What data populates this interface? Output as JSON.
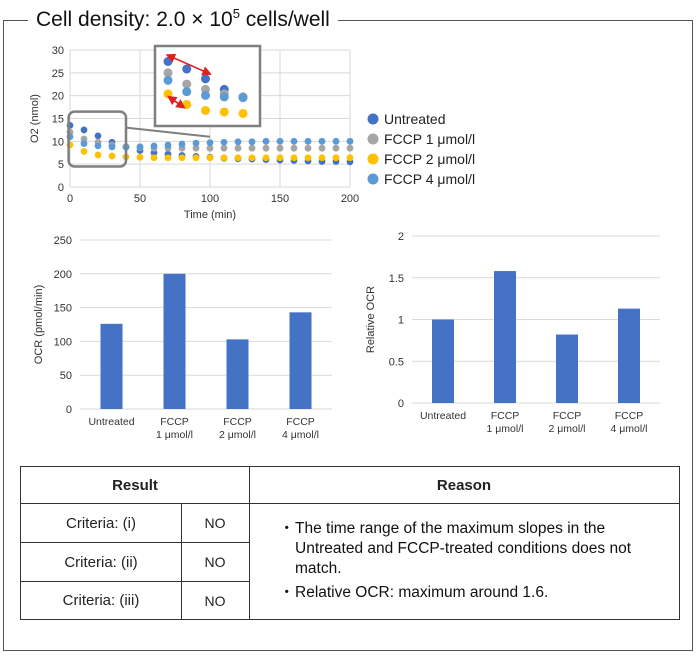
{
  "heading": {
    "prefix": "Cell density: 2.0",
    "times": "×",
    "base": " 10",
    "exp": "5",
    "suffix": " cells/well"
  },
  "colors": {
    "untreated": "#4472C4",
    "fccp1": "#A5A5A5",
    "fccp2": "#FFC000",
    "fccp4": "#5B9BD5",
    "bar": "#4472C4",
    "arrow": "#E02020",
    "zoombox": "#7F7F7F"
  },
  "chart_data": [
    {
      "type": "scatter",
      "xlabel": "Time (min)",
      "ylabel": "O2 (nmol)",
      "xlim": [
        0,
        200
      ],
      "ylim": [
        0,
        30
      ],
      "xticks": [
        0,
        50,
        100,
        150,
        200
      ],
      "yticks": [
        0,
        5,
        10,
        15,
        20,
        25,
        30
      ],
      "grid": true,
      "legend": "right",
      "series": [
        {
          "name": "Untreated",
          "color_key": "untreated",
          "x": [
            0,
            10,
            20,
            30,
            40,
            50,
            60,
            70,
            80,
            90,
            100,
            110,
            120,
            130,
            140,
            150,
            160,
            170,
            180,
            190,
            200
          ],
          "y": [
            13.5,
            12.5,
            11.2,
            9.8,
            8.8,
            8.0,
            7.5,
            7.2,
            6.9,
            6.7,
            6.5,
            6.3,
            6.2,
            6.1,
            6.0,
            5.9,
            5.8,
            5.7,
            5.6,
            5.6,
            5.5
          ]
        },
        {
          "name": "FCCP 1 μmol/l",
          "color_key": "fccp1",
          "x": [
            0,
            10,
            20,
            30,
            40,
            50,
            60,
            70,
            80,
            90,
            100,
            110,
            120,
            130,
            140,
            150,
            160,
            170,
            180,
            190,
            200
          ],
          "y": [
            12.0,
            10.5,
            9.8,
            9.2,
            8.8,
            8.6,
            8.5,
            8.5,
            8.5,
            8.5,
            8.5,
            8.5,
            8.5,
            8.5,
            8.5,
            8.5,
            8.5,
            8.5,
            8.5,
            8.5,
            8.5
          ]
        },
        {
          "name": "FCCP 2 μmol/l",
          "color_key": "fccp2",
          "x": [
            0,
            10,
            20,
            30,
            40,
            50,
            60,
            70,
            80,
            90,
            100,
            110,
            120,
            130,
            140,
            150,
            160,
            170,
            180,
            190,
            200
          ],
          "y": [
            9.2,
            7.8,
            7.0,
            6.8,
            6.6,
            6.5,
            6.4,
            6.4,
            6.4,
            6.4,
            6.4,
            6.4,
            6.4,
            6.4,
            6.4,
            6.4,
            6.4,
            6.4,
            6.4,
            6.4,
            6.4
          ]
        },
        {
          "name": "FCCP 4 μmol/l",
          "color_key": "fccp4",
          "x": [
            0,
            10,
            20,
            30,
            40,
            50,
            60,
            70,
            80,
            90,
            100,
            110,
            120,
            130,
            140,
            150,
            160,
            170,
            180,
            190,
            200
          ],
          "y": [
            11.0,
            9.5,
            9.0,
            8.8,
            8.7,
            8.8,
            9.0,
            9.2,
            9.4,
            9.6,
            9.7,
            9.8,
            9.9,
            9.9,
            10.0,
            10.0,
            10.0,
            10.0,
            10.0,
            10.0,
            10.0
          ]
        }
      ]
    },
    {
      "type": "bar",
      "categories": [
        "Untreated",
        "FCCP\n1 μmol/l",
        "FCCP\n2 μmol/l",
        "FCCP\n4 μmol/l"
      ],
      "values": [
        126,
        200,
        103,
        143
      ],
      "ylabel": "OCR (pmol/min)",
      "ylim": [
        0,
        250
      ],
      "yticks": [
        0,
        50,
        100,
        150,
        200,
        250
      ],
      "grid": true
    },
    {
      "type": "bar",
      "categories": [
        "Untreated",
        "FCCP\n1 μmol/l",
        "FCCP\n2 μmol/l",
        "FCCP\n4 μmol/l"
      ],
      "values": [
        1.0,
        1.58,
        0.82,
        1.13
      ],
      "ylabel": "Relative OCR",
      "ylim": [
        0,
        2
      ],
      "yticks": [
        0,
        0.5,
        1,
        1.5,
        2
      ],
      "ytick_labels": [
        "0",
        "0.5",
        "1",
        "1.5",
        "2"
      ],
      "grid": true
    }
  ],
  "table": {
    "result_header": "Result",
    "reason_header": "Reason",
    "rows": [
      {
        "criterion": "Criteria: (i)",
        "value": "NO"
      },
      {
        "criterion": "Criteria: (ii)",
        "value": "NO"
      },
      {
        "criterion": "Criteria: (iii)",
        "value": "NO"
      }
    ],
    "bullet": "・",
    "reasons": [
      "The time range of the maximum slopes in the Untreated and FCCP-treated conditions does not match.",
      "Relative OCR: maximum around 1.6."
    ]
  }
}
